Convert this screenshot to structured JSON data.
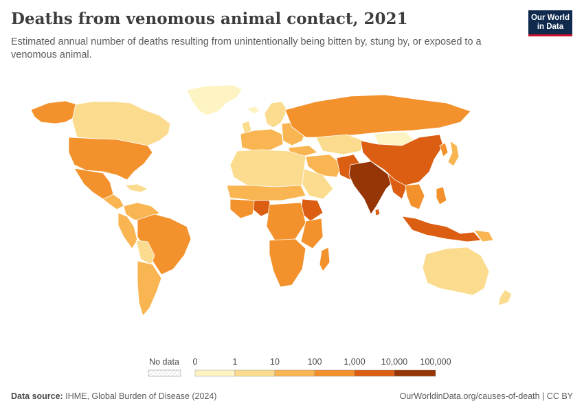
{
  "header": {
    "title": "Deaths from venomous animal contact, 2021",
    "subtitle": "Estimated annual number of deaths resulting from unintentionally being bitten by, stung by, or exposed to a venomous animal.",
    "logo_line1": "Our World",
    "logo_line2": "in Data"
  },
  "legend": {
    "no_data_label": "No data",
    "bins": [
      {
        "label": "0",
        "color": "#fdf3c3"
      },
      {
        "label": "1",
        "color": "#fbdc8f"
      },
      {
        "label": "10",
        "color": "#f9b552"
      },
      {
        "label": "100",
        "color": "#f3922d"
      },
      {
        "label": "1,000",
        "color": "#db5e12"
      },
      {
        "label": "10,000",
        "color": "#963506"
      },
      {
        "label": "100,000",
        "color": ""
      }
    ]
  },
  "footer": {
    "source_label": "Data source:",
    "source_text": "IHME, Global Burden of Disease (2024)",
    "url": "OurWorldinData.org/causes-of-death | CC BY"
  },
  "colors": {
    "bin0": "#fdf3c3",
    "bin1": "#fbdc8f",
    "bin2": "#f9b552",
    "bin3": "#f3922d",
    "bin4": "#db5e12",
    "bin5": "#963506",
    "border": "#ffffff",
    "brand": "#0f2a4d",
    "brand_accent": "#c8102e"
  }
}
